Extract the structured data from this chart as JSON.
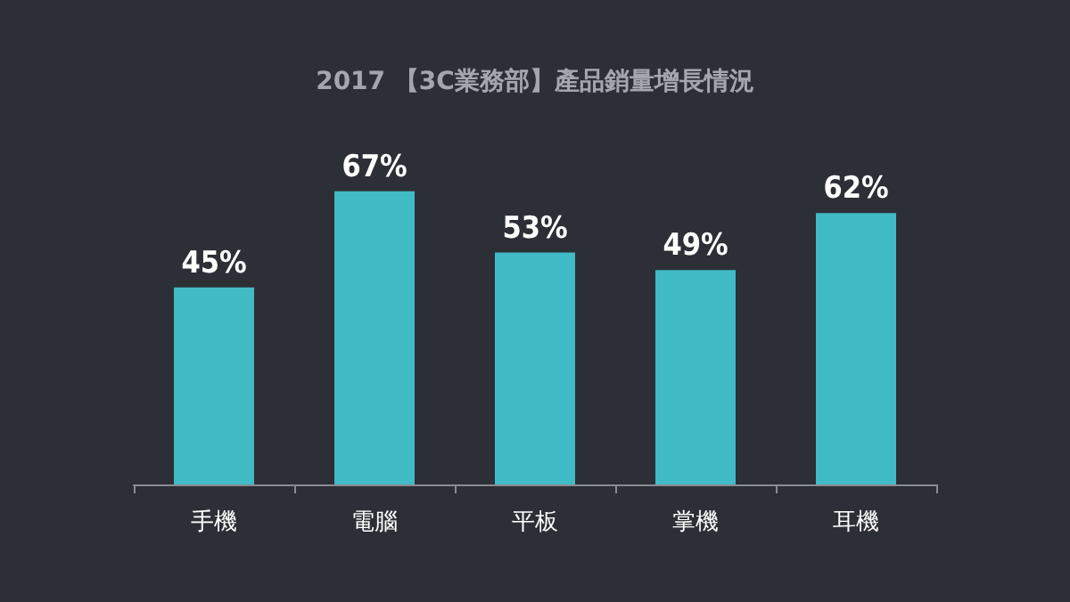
{
  "chart_data": {
    "type": "bar",
    "title": "2017 【3C業務部】產品銷量增長情況",
    "categories": [
      "手機",
      "電腦",
      "平板",
      "掌機",
      "耳機"
    ],
    "values": [
      45,
      67,
      53,
      49,
      62
    ],
    "value_labels": [
      "45%",
      "67%",
      "53%",
      "49%",
      "62%"
    ],
    "color": "#41bbc5"
  }
}
